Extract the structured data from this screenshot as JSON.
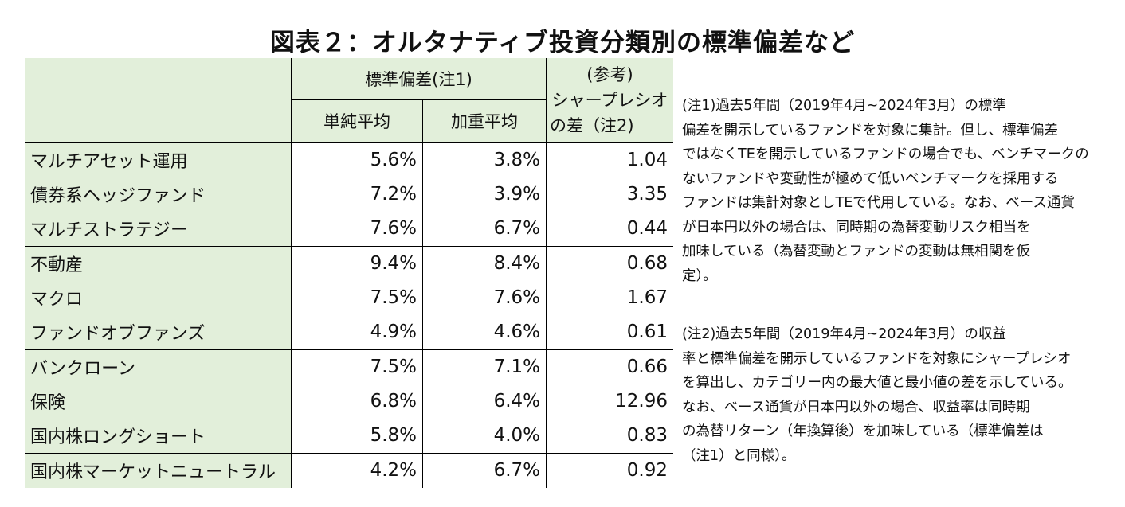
{
  "title": "図表２：オルタナティブ投資分類別の標準偏差など",
  "headers": {
    "std_group": "標準偏差(注1)",
    "simple_avg": "単純平均",
    "weighted_avg": "加重平均",
    "ref_line1": "(参考)",
    "ref_line2": "シャープレシオ",
    "ref_line3": "の差（注2)"
  },
  "rows": [
    {
      "category": "マルチアセット運用",
      "simple": "5.6%",
      "weighted": "3.8%",
      "sharpe": "1.04"
    },
    {
      "category": "債券系ヘッジファンド",
      "simple": "7.2%",
      "weighted": "3.9%",
      "sharpe": "3.35"
    },
    {
      "category": "マルチストラテジー",
      "simple": "7.6%",
      "weighted": "6.7%",
      "sharpe": "0.44"
    },
    {
      "category": "不動産",
      "simple": "9.4%",
      "weighted": "8.4%",
      "sharpe": "0.68"
    },
    {
      "category": "マクロ",
      "simple": "7.5%",
      "weighted": "7.6%",
      "sharpe": "1.67"
    },
    {
      "category": "ファンドオブファンズ",
      "simple": "4.9%",
      "weighted": "4.6%",
      "sharpe": "0.61"
    },
    {
      "category": "バンクローン",
      "simple": "7.5%",
      "weighted": "7.1%",
      "sharpe": "0.66"
    },
    {
      "category": "保険",
      "simple": "6.8%",
      "weighted": "6.4%",
      "sharpe": "12.96"
    },
    {
      "category": "国内株ロングショート",
      "simple": "5.8%",
      "weighted": "4.0%",
      "sharpe": "0.83"
    },
    {
      "category": "国内株マーケットニュートラル",
      "simple": "4.2%",
      "weighted": "6.7%",
      "sharpe": "0.92"
    }
  ],
  "notes": {
    "note1": [
      "(注1)過去5年間（2019年4月~2024年3月）の標準",
      "偏差を開示しているファンドを対象に集計。但し、標準偏差",
      "ではなくTEを開示しているファンドの場合でも、ベンチマークの",
      "ないファンドや変動性が極めて低いベンチマークを採用する",
      "ファンドは集計対象としTEで代用している。なお、ベース通貨",
      "が日本円以外の場合は、同時期の為替変動リスク相当を",
      "加味している（為替変動とファンドの変動は無相関を仮",
      "定）。"
    ],
    "note2": [
      "(注2)過去5年間（2019年4月~2024年3月）の収益",
      "率と標準偏差を開示しているファンドを対象にシャープレシオ",
      "を算出し、カテゴリー内の最大値と最小値の差を示している。",
      "なお、ベース通貨が日本円以外の場合、収益率は同時期",
      "の為替リターン（年換算後）を加味している（標準偏差は",
      "（注1）と同様）。"
    ]
  }
}
